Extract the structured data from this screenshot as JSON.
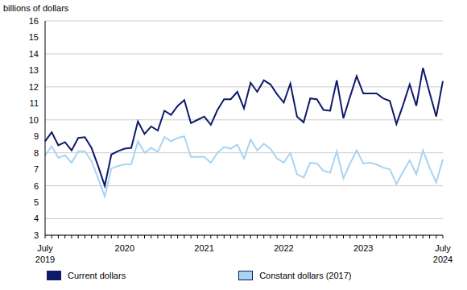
{
  "chart_data": {
    "type": "line",
    "y_axis_title": "billions of dollars",
    "categories": [
      "July 2019",
      null,
      null,
      null,
      null,
      null,
      null,
      null,
      null,
      null,
      null,
      null,
      "2020",
      null,
      null,
      null,
      null,
      null,
      null,
      null,
      null,
      null,
      null,
      null,
      "2021",
      null,
      null,
      null,
      null,
      null,
      null,
      null,
      null,
      null,
      null,
      null,
      "2022",
      null,
      null,
      null,
      null,
      null,
      null,
      null,
      null,
      null,
      null,
      null,
      "2023",
      null,
      null,
      null,
      null,
      null,
      null,
      null,
      null,
      null,
      null,
      null,
      "July 2024"
    ],
    "series": [
      {
        "name": "Current dollars",
        "color": "#0e1a6b",
        "values": [
          8.7,
          9.25,
          8.45,
          8.65,
          8.15,
          8.9,
          8.95,
          8.3,
          7.2,
          6.0,
          7.9,
          8.1,
          8.25,
          8.3,
          9.9,
          9.15,
          9.6,
          9.35,
          10.55,
          10.3,
          10.85,
          11.2,
          9.8,
          10.0,
          10.2,
          9.7,
          10.6,
          11.25,
          11.25,
          11.7,
          10.7,
          12.25,
          11.7,
          12.4,
          12.15,
          11.55,
          11.05,
          12.2,
          10.2,
          9.85,
          11.3,
          11.25,
          10.6,
          10.55,
          12.4,
          10.1,
          11.4,
          12.65,
          11.6,
          11.6,
          11.6,
          11.3,
          11.15,
          9.75,
          10.9,
          12.15,
          10.85,
          13.15,
          11.65,
          10.2,
          12.35
        ]
      },
      {
        "name": "Constant dollars (2017)",
        "color": "#a8d4f2",
        "values": [
          7.85,
          8.4,
          7.7,
          7.85,
          7.4,
          8.1,
          8.1,
          7.5,
          6.45,
          5.35,
          7.05,
          7.2,
          7.3,
          7.3,
          8.7,
          8.0,
          8.3,
          8.05,
          8.95,
          8.7,
          8.9,
          9.0,
          7.75,
          7.75,
          7.75,
          7.4,
          8.0,
          8.35,
          8.25,
          8.5,
          7.65,
          8.8,
          8.15,
          8.55,
          8.25,
          7.65,
          7.4,
          8.0,
          6.7,
          6.5,
          7.4,
          7.35,
          6.9,
          6.8,
          8.1,
          6.45,
          7.35,
          8.15,
          7.35,
          7.4,
          7.3,
          7.1,
          7.0,
          6.1,
          6.85,
          7.55,
          6.7,
          8.15,
          7.1,
          6.2,
          7.6
        ]
      }
    ],
    "ylim": [
      3,
      16
    ],
    "yticks": [
      3,
      4,
      5,
      6,
      7,
      8,
      9,
      10,
      11,
      12,
      13,
      14,
      15,
      16
    ],
    "grid": true,
    "legend": "bottom-left"
  }
}
